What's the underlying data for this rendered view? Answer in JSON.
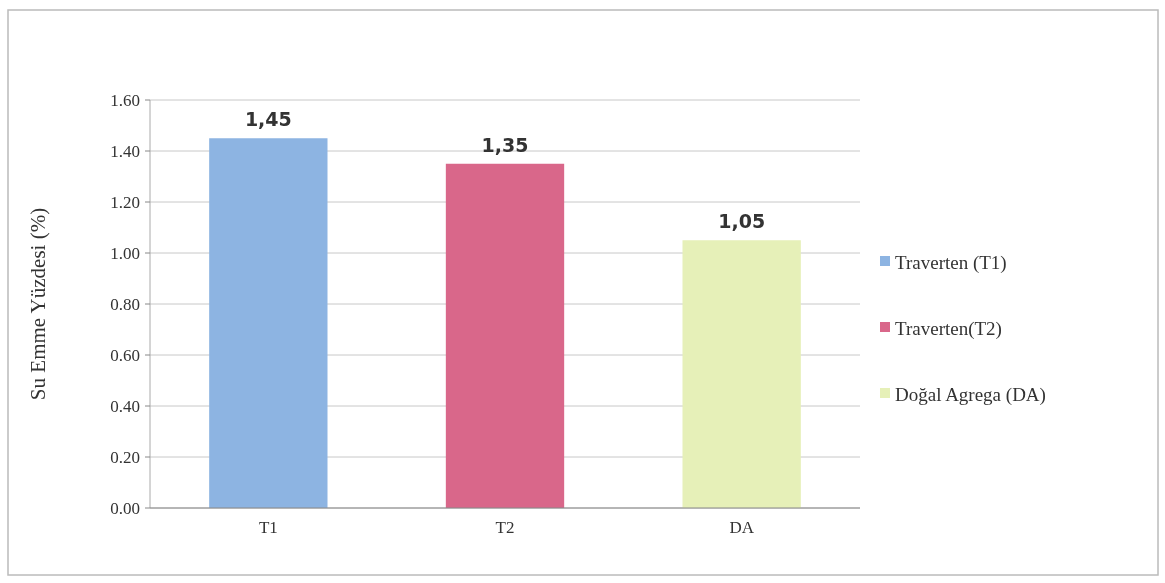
{
  "chart_data": {
    "type": "bar",
    "ylabel": "Su Emme Yüzdesi (%)",
    "categories": [
      "T1",
      "T2",
      "DA"
    ],
    "series": [
      {
        "name": "Traverten (T1)",
        "color": "#8db4e2",
        "values": [
          1.45,
          null,
          null
        ],
        "value_labels": [
          "1,45",
          null,
          null
        ]
      },
      {
        "name": "Traverten(T2)",
        "color": "#d9678a",
        "values": [
          null,
          1.35,
          null
        ],
        "value_labels": [
          null,
          "1,35",
          null
        ]
      },
      {
        "name": "Doğal Agrega (DA)",
        "color": "#e6f0b8",
        "values": [
          null,
          null,
          1.05
        ],
        "value_labels": [
          null,
          null,
          "1,05"
        ]
      }
    ],
    "ylim": [
      0,
      1.6
    ],
    "yticks": [
      {
        "value": 0,
        "label": "0.00"
      },
      {
        "value": 0.2,
        "label": "0.20"
      },
      {
        "value": 0.4,
        "label": "0.40"
      },
      {
        "value": 0.6,
        "label": "0.60"
      },
      {
        "value": 0.8,
        "label": "0.80"
      },
      {
        "value": 1,
        "label": "1.00"
      },
      {
        "value": 1.2,
        "label": "1.20"
      },
      {
        "value": 1.4,
        "label": "1.40"
      },
      {
        "value": 1.6,
        "label": "1.60"
      }
    ],
    "grid": "y",
    "legend": "right"
  }
}
